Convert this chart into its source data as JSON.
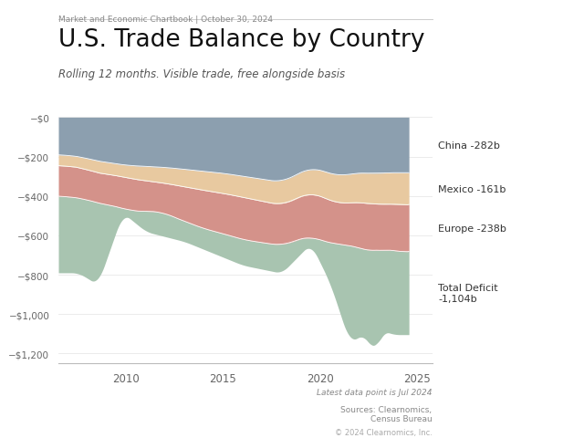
{
  "title": "U.S. Trade Balance by Country",
  "subtitle": "Rolling 12 months. Visible trade, free alongside basis",
  "header": "Market and Economic Chartbook | October 30, 2024",
  "footer_note": "Latest data point is Jul 2024",
  "sources": "Sources: Clearnomics,\nCensus Bureau",
  "copyright": "© 2024 Clearnomics, Inc.",
  "bg_color": "#ffffff",
  "plot_bg_color": "#ffffff",
  "colors": {
    "china": "#8c9faf",
    "mexico": "#e8c9a0",
    "europe": "#d4928a",
    "total": "#a8c4b0"
  },
  "labels": {
    "china": "China -282b",
    "mexico": "Mexico -161b",
    "europe": "Europe -238b",
    "total": "Total Deficit\n-1,104b"
  },
  "ylim": [
    -1250,
    20
  ],
  "yticks": [
    0,
    -200,
    -400,
    -600,
    -800,
    -1000,
    -1200
  ],
  "ytick_labels": [
    "−$0",
    "−$200",
    "−$400",
    "−$600",
    "−$800",
    "−$1,000",
    "−$1,200"
  ],
  "year_start": 2006.5,
  "year_end": 2024.6,
  "xticks": [
    2010,
    2015,
    2020,
    2025
  ],
  "xtick_labels": [
    "2010",
    "2015",
    "2020",
    "2025"
  ]
}
